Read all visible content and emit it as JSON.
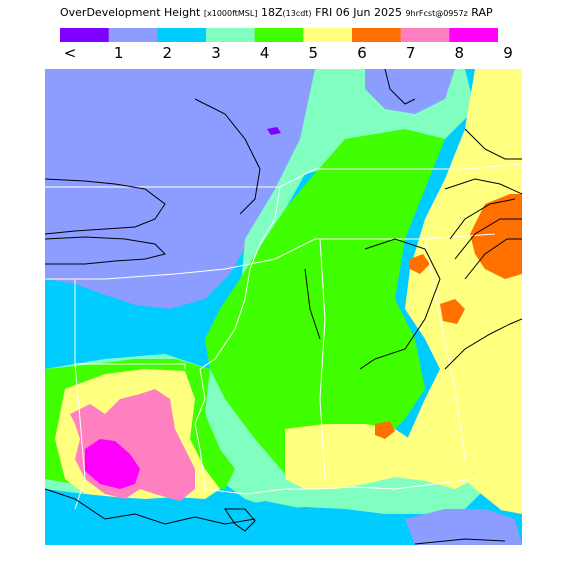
{
  "title": {
    "field": "OverDevelopment Height",
    "units": "[x1000ftMSL]",
    "valid": "18Z",
    "local": "(13cdt)",
    "date": "FRI 06 Jun 2025",
    "fcst": "9hrFcst@0957z",
    "model": "RAP"
  },
  "legend": {
    "colors": [
      "#8000ff",
      "#8c9cff",
      "#00ccff",
      "#80ffc0",
      "#40ff00",
      "#ffff80",
      "#ff7000",
      "#ff80c0",
      "#ff00ff"
    ],
    "labels": [
      "<",
      "1",
      "2",
      "3",
      "4",
      "5",
      "6",
      "7",
      "8",
      "9"
    ]
  },
  "map": {
    "fill_colors": {
      "cyan": "#00ccff",
      "periwinkle": "#8c9cff",
      "aqua": "#80ffc0",
      "green": "#40ff00",
      "yellow": "#ffff80",
      "orange": "#ff7000",
      "pink": "#ff80c0",
      "magenta": "#ff00ff",
      "purple": "#8000ff"
    },
    "border_color": "#ffffff",
    "contour_color": "#000000"
  }
}
